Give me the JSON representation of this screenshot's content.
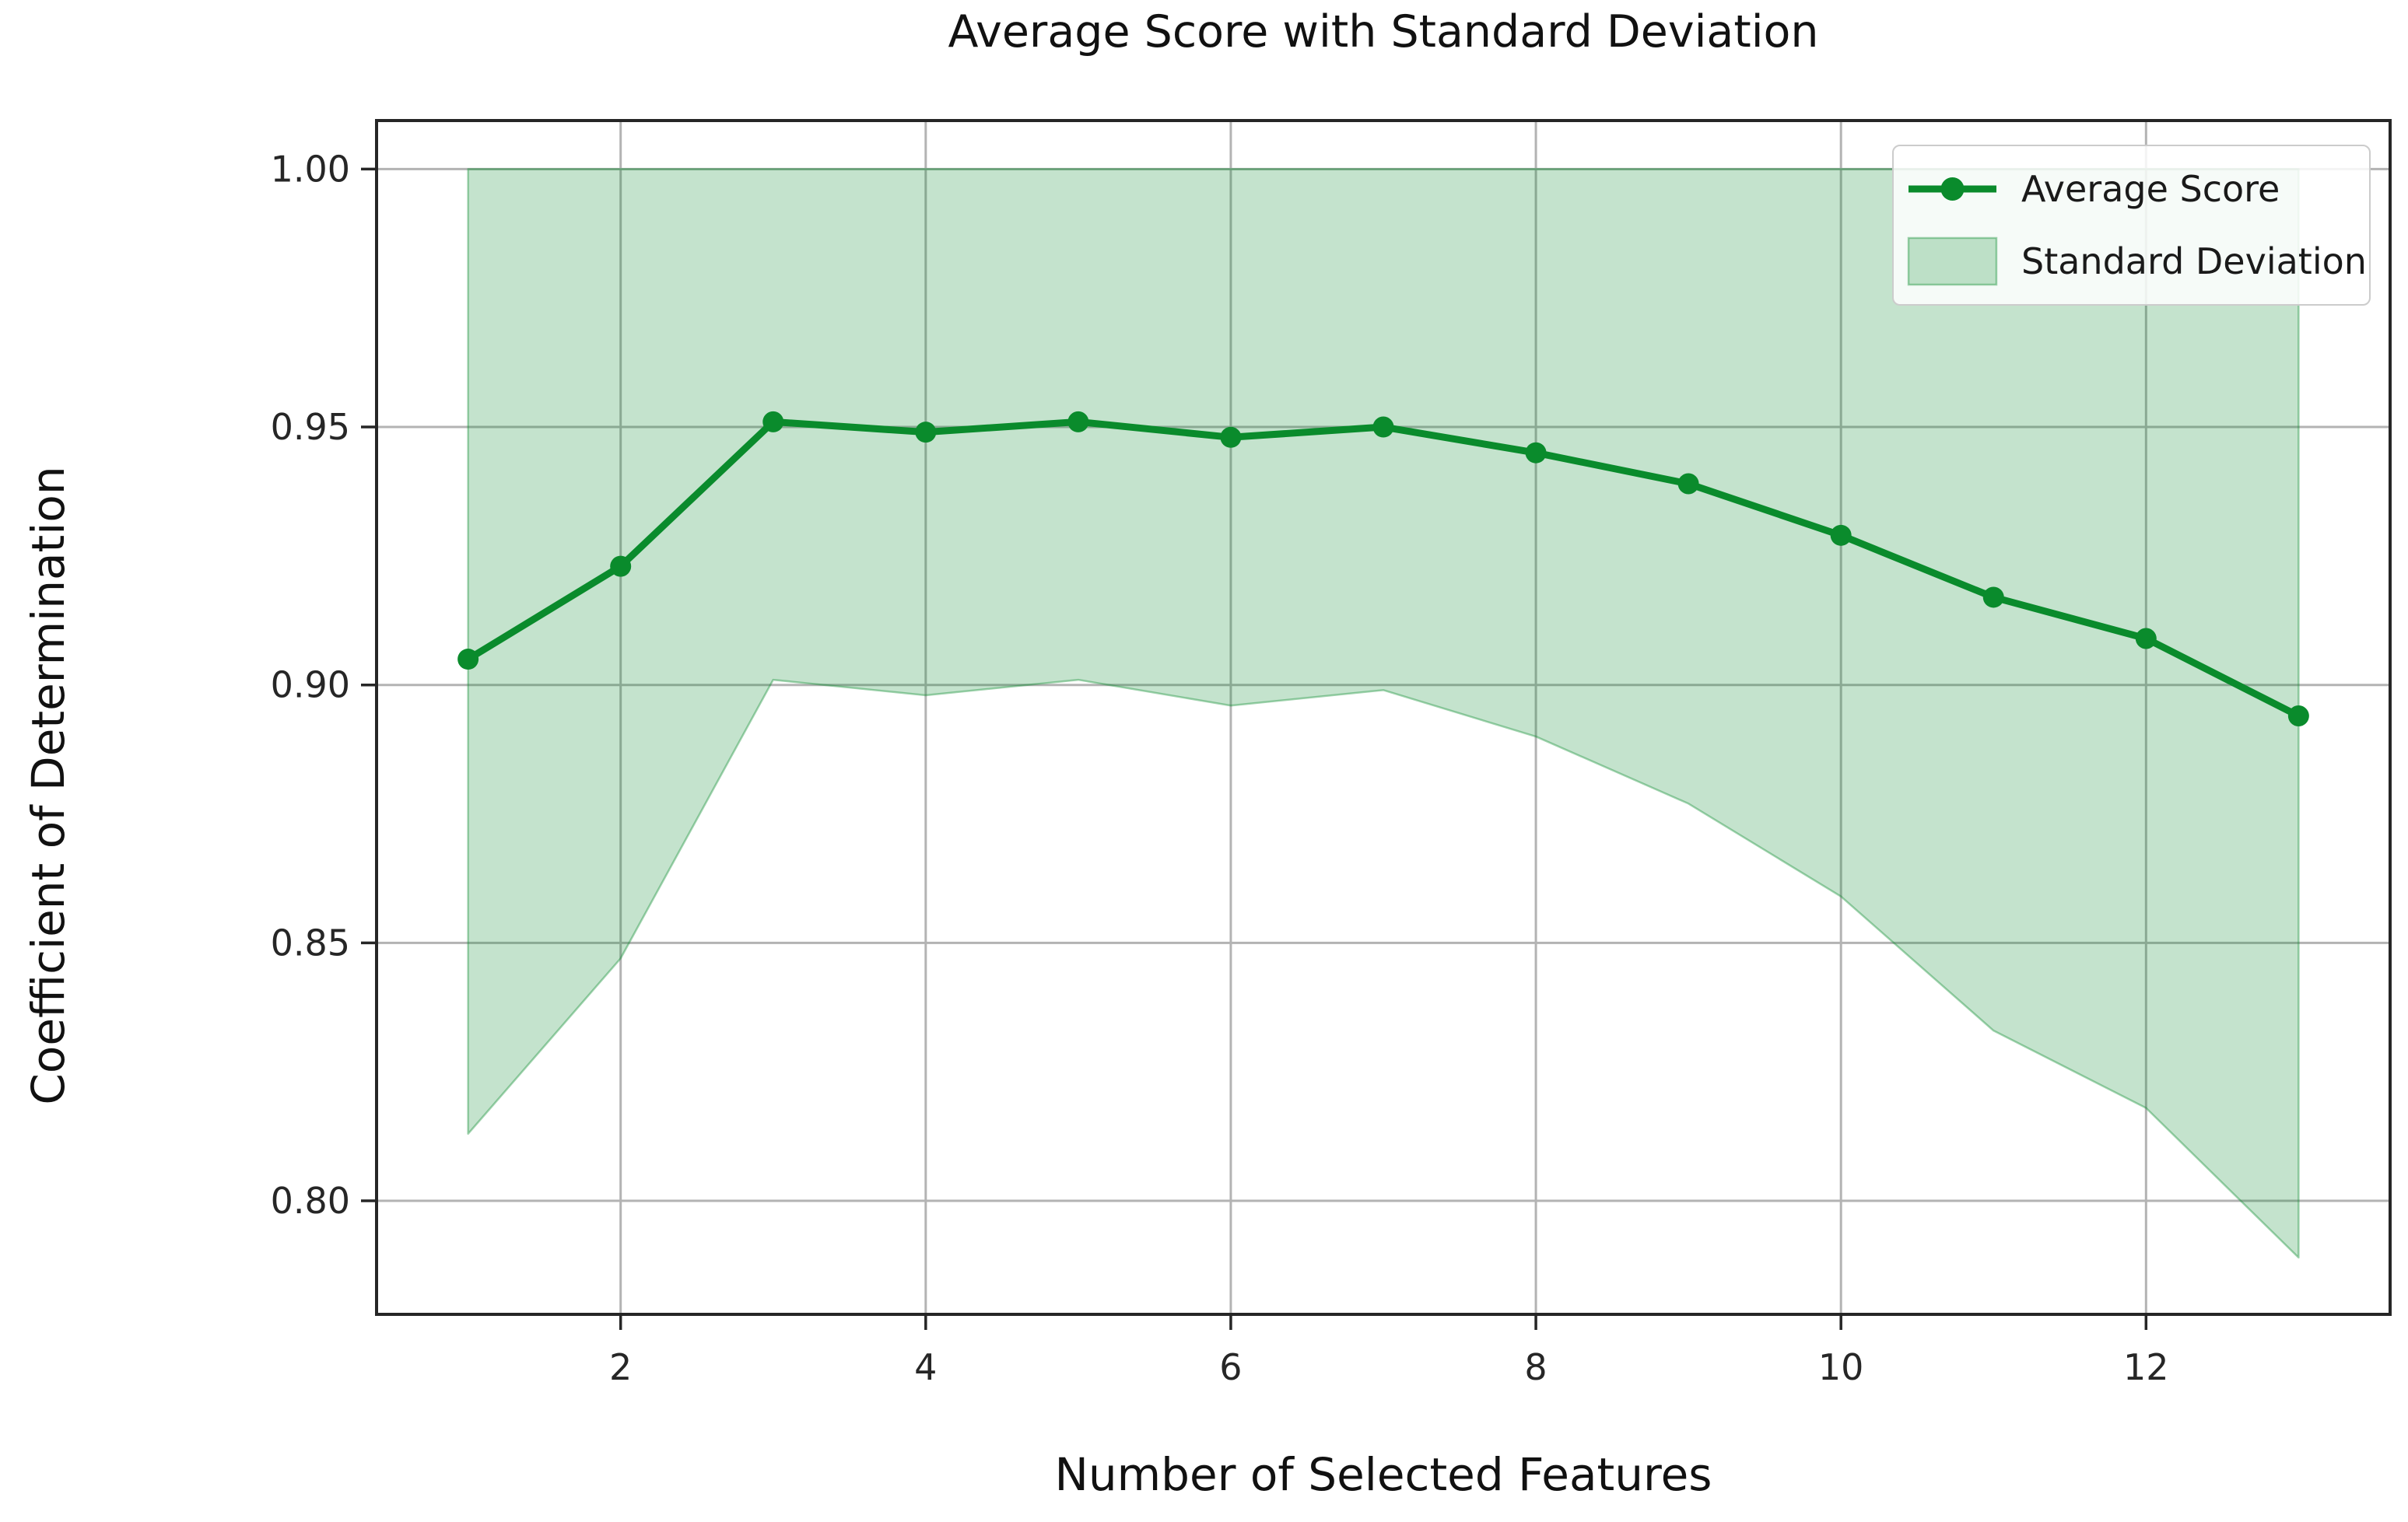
{
  "figure": {
    "title": "Average Score with Standard Deviation",
    "xlabel": "Number of Selected Features",
    "ylabel": "Coefficient of Determination"
  },
  "legend": {
    "position": "upper right",
    "entries": [
      {
        "label": "Average Score",
        "type": "line-with-marker"
      },
      {
        "label": "Standard Deviation",
        "type": "patch"
      }
    ]
  },
  "colors": {
    "line": "#0a8b2c",
    "band_fill": "rgba(10,139,44,0.24)",
    "band_edge": "rgba(10,139,44,0.38)",
    "grid": "#b3b3b3",
    "spine": "#262626",
    "text": "#1a1a1a",
    "legend_bg": "rgba(255,255,255,0.85)",
    "legend_border": "#cccccc"
  },
  "chart_data": {
    "type": "line",
    "title": "Average Score with Standard Deviation",
    "xlabel": "Number of Selected Features",
    "ylabel": "Coefficient of Determination",
    "x": [
      1,
      2,
      3,
      4,
      5,
      6,
      7,
      8,
      9,
      10,
      11,
      12,
      13
    ],
    "series": [
      {
        "name": "Average Score",
        "values": [
          0.905,
          0.923,
          0.951,
          0.949,
          0.951,
          0.948,
          0.95,
          0.945,
          0.939,
          0.929,
          0.917,
          0.909,
          0.894
        ]
      }
    ],
    "band": {
      "name": "Standard Deviation",
      "lower": [
        0.813,
        0.847,
        0.901,
        0.898,
        0.901,
        0.896,
        0.899,
        0.89,
        0.877,
        0.859,
        0.833,
        0.818,
        0.789
      ],
      "upper": [
        1.0,
        1.0,
        1.0,
        1.0,
        1.0,
        1.0,
        1.0,
        1.0,
        1.0,
        1.0,
        1.0,
        1.0,
        1.0
      ]
    },
    "x_ticks": [
      2,
      4,
      6,
      8,
      10,
      12
    ],
    "y_ticks": [
      0.8,
      0.85,
      0.9,
      0.95,
      1.0
    ],
    "y_tick_labels": [
      "0.80",
      "0.85",
      "0.90",
      "0.95",
      "1.00"
    ],
    "xlim": [
      0.4,
      13.6
    ],
    "ylim": [
      0.778,
      1.0094
    ],
    "grid": true,
    "legend_position": "upper right"
  }
}
